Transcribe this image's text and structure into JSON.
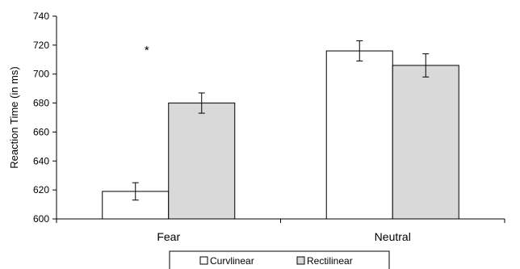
{
  "chart_data": {
    "type": "bar",
    "title": "",
    "xlabel": "",
    "ylabel": "Reaction Time (in ms)",
    "ylim": [
      600,
      740
    ],
    "yticks": [
      "600",
      "620",
      "640",
      "660",
      "680",
      "700",
      "720",
      "740"
    ],
    "categories": [
      "Fear",
      "Neutral"
    ],
    "series": [
      {
        "name": "Curvlinear",
        "values": [
          619,
          716
        ],
        "errors": [
          6,
          7
        ],
        "color": "#ffffff"
      },
      {
        "name": "Rectilinear",
        "values": [
          680,
          706
        ],
        "errors": [
          7,
          8
        ],
        "color": "#d9d9d9"
      }
    ],
    "annotations": [
      {
        "text": "*",
        "category": "Fear"
      }
    ],
    "legend": {
      "position": "bottom",
      "entries": [
        "Curvlinear",
        "Rectilinear"
      ]
    },
    "grid": false
  }
}
